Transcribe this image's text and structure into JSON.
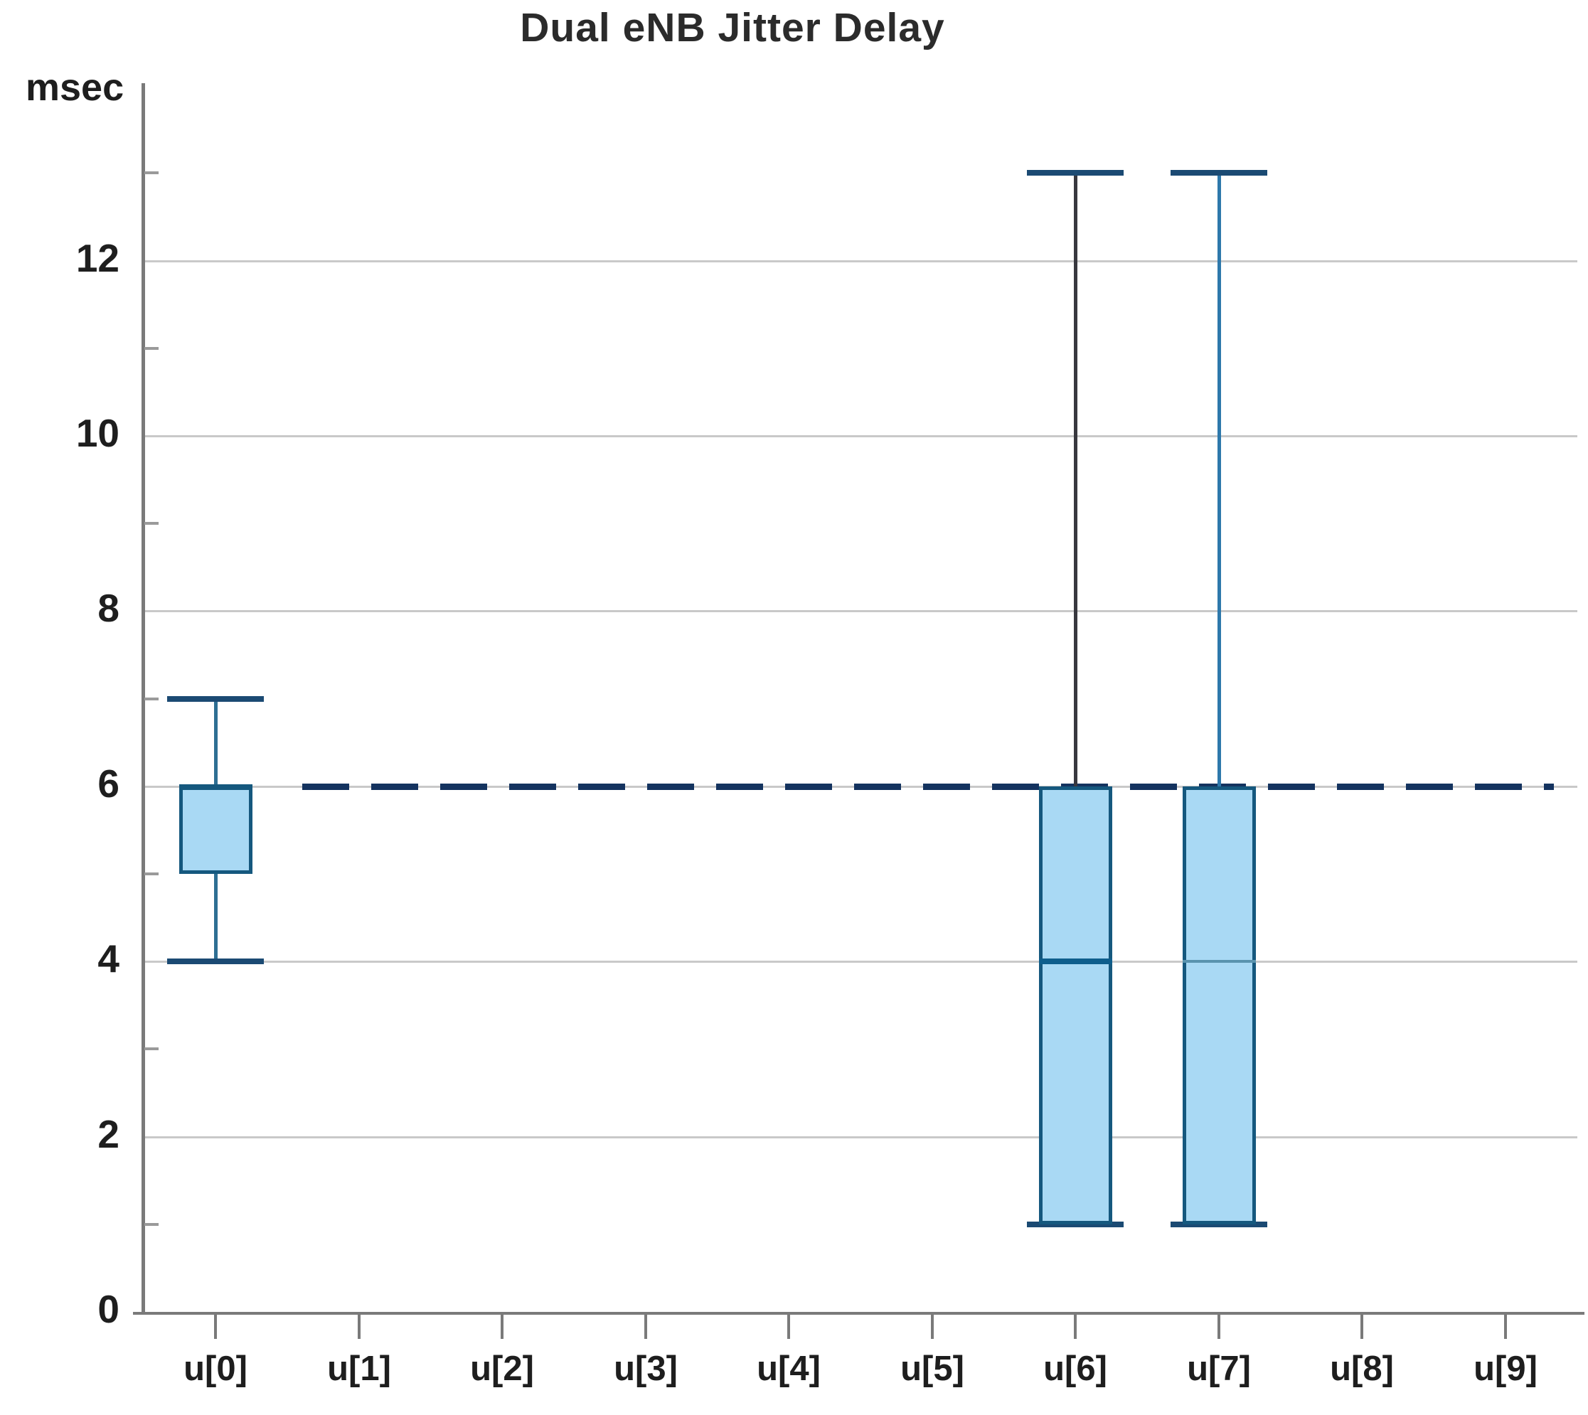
{
  "chart_data": {
    "type": "boxplot",
    "title": "Dual eNB Jitter Delay",
    "ylabel": "msec",
    "xlabel": "",
    "ylim": [
      0,
      14
    ],
    "y_major_ticks": [
      0,
      2,
      4,
      6,
      8,
      10,
      12
    ],
    "y_minor_ticks": [
      1,
      3,
      5,
      7,
      9,
      11,
      13
    ],
    "grid": "horizontal-major",
    "legend": "none",
    "categories": [
      "u[0]",
      "u[1]",
      "u[2]",
      "u[3]",
      "u[4]",
      "u[5]",
      "u[6]",
      "u[7]",
      "u[8]",
      "u[9]"
    ],
    "series": [
      {
        "name": "u[0]",
        "min": 4,
        "q1": 5,
        "median": 6,
        "q3": 6,
        "max": 7,
        "whisker_color": "#2e6f93",
        "median_color": "#15587e",
        "median_weight": 7
      },
      {
        "name": "u[1]",
        "min": 6,
        "q1": 6,
        "median": 6,
        "q3": 6,
        "max": 6
      },
      {
        "name": "u[2]",
        "min": 6,
        "q1": 6,
        "median": 6,
        "q3": 6,
        "max": 6
      },
      {
        "name": "u[3]",
        "min": 6,
        "q1": 6,
        "median": 6,
        "q3": 6,
        "max": 6
      },
      {
        "name": "u[4]",
        "min": 6,
        "q1": 6,
        "median": 6,
        "q3": 6,
        "max": 6
      },
      {
        "name": "u[5]",
        "min": 6,
        "q1": 6,
        "median": 6,
        "q3": 6,
        "max": 6
      },
      {
        "name": "u[6]",
        "min": 1,
        "q1": 1,
        "median": 4,
        "q3": 6,
        "max": 13,
        "whisker_color": "#38383f",
        "median_color": "#0e5e8c",
        "median_weight": 8
      },
      {
        "name": "u[7]",
        "min": 1,
        "q1": 1,
        "median": 4,
        "q3": 6,
        "max": 13,
        "whisker_color": "#2e78ab",
        "median_color": "#5a93ae",
        "median_weight": 4
      },
      {
        "name": "u[8]",
        "min": 6,
        "q1": 6,
        "median": 6,
        "q3": 6,
        "max": 6
      },
      {
        "name": "u[9]",
        "min": 6,
        "q1": 6,
        "median": 6,
        "q3": 6,
        "max": 6
      }
    ],
    "constant_value_line": {
      "value": 6,
      "style": "dashed",
      "note": "series with all values = 6 render as dashed line segments at y = 6"
    },
    "colors": {
      "box_fill": "#a9d9f4",
      "box_border": "#15587e",
      "whisker_default": "#2e6f93",
      "cap": "#1b4a73",
      "dash": "#14335f",
      "grid": "#c9c9c9",
      "axis": "#7a7a7a",
      "text": "#1e1e1e"
    }
  }
}
